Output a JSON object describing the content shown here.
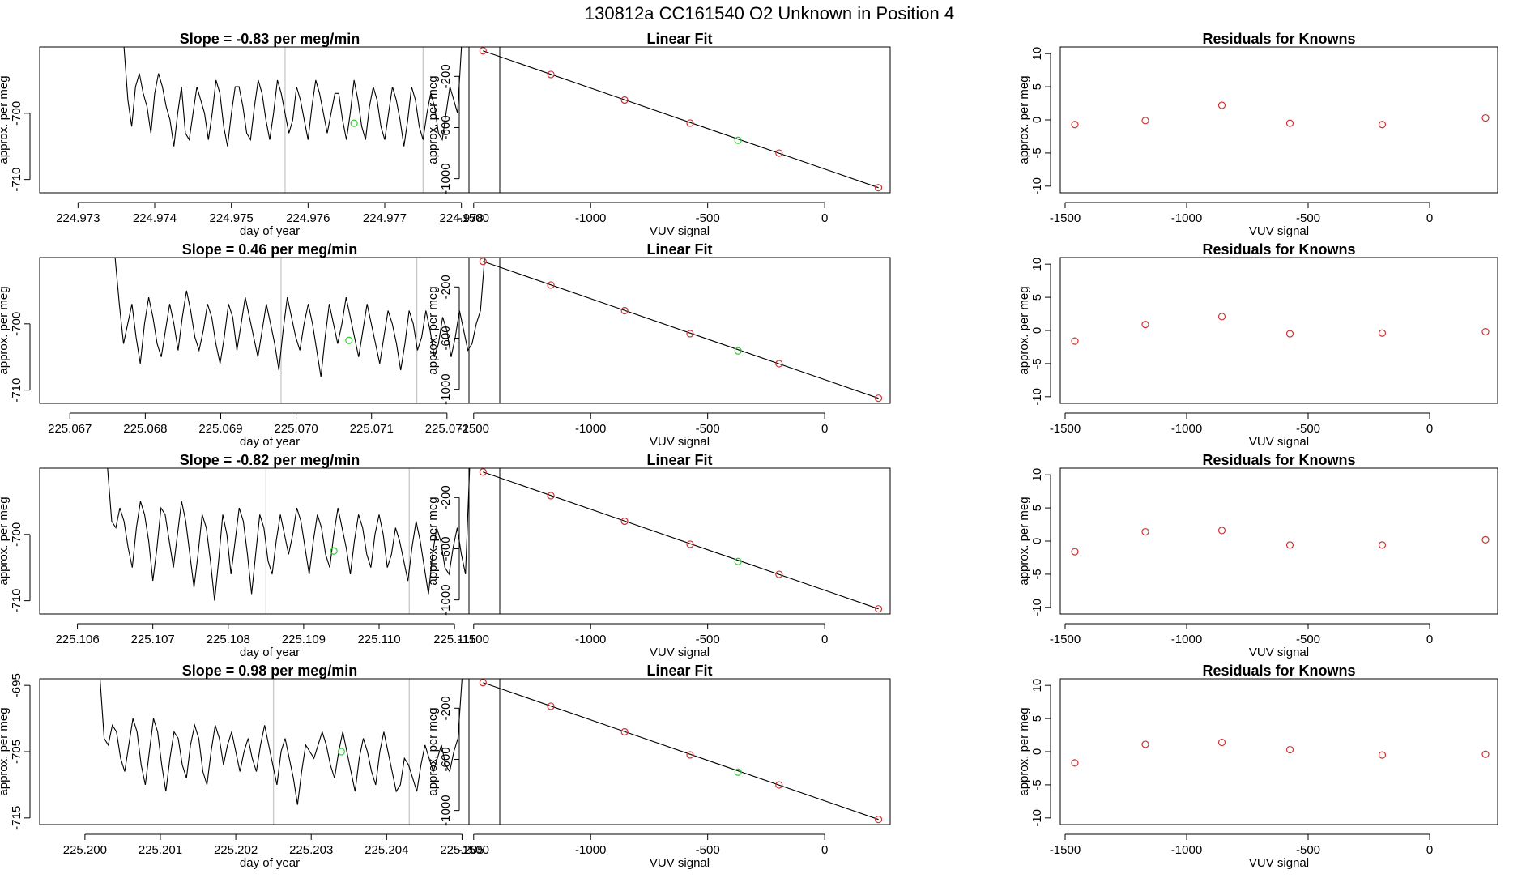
{
  "figure_title": "130812a      CC161540    O2 Unknown in Position  4",
  "chart_data": [
    {
      "panel": "time-series",
      "row": 1,
      "type": "line",
      "title": "Slope =  -0.83  per meg/min",
      "xlabel": "day of year",
      "ylabel": "approx. per meg",
      "xlim": [
        224.9725,
        224.9785
      ],
      "ylim": [
        -712,
        -690
      ],
      "xticks": [
        224.973,
        224.974,
        224.975,
        224.976,
        224.977,
        224.978
      ],
      "xtick_labels": [
        "224.973",
        "224.974",
        "224.975",
        "224.976",
        "224.977",
        "224.978"
      ],
      "yticks": [
        -700,
        -710
      ],
      "ytick_labels": [
        "-700",
        "-710"
      ],
      "vlines": [
        224.9757,
        224.9775
      ],
      "green_point": [
        224.9766,
        -701.5
      ],
      "series": [
        {
          "x_start": 224.9736,
          "x_end": 224.978,
          "values": [
            -690,
            -698,
            -702,
            -696,
            -694,
            -697,
            -699,
            -703,
            -697,
            -694,
            -696,
            -699,
            -701,
            -705,
            -700,
            -696,
            -703,
            -704,
            -700,
            -696,
            -698,
            -700,
            -704,
            -700,
            -695,
            -697,
            -702,
            -705,
            -700,
            -696,
            -696,
            -699,
            -703,
            -704,
            -699,
            -695,
            -697,
            -701,
            -704,
            -700,
            -695,
            -697,
            -700,
            -703,
            -701,
            -696,
            -698,
            -701,
            -704,
            -699,
            -695,
            -697,
            -700,
            -703,
            -700,
            -697,
            -697,
            -701,
            -704,
            -700,
            -695,
            -698,
            -702,
            -704,
            -699,
            -696,
            -698,
            -702,
            -704,
            -700,
            -696,
            -698,
            -701,
            -705,
            -701,
            -696,
            -698,
            -702,
            -704,
            -700,
            -697,
            -699,
            -703,
            -704,
            -700,
            -696,
            -698,
            -700,
            -690
          ]
        }
      ]
    },
    {
      "panel": "linear-fit",
      "row": 1,
      "type": "scatter",
      "title": "Linear Fit",
      "xlabel": "VUV signal",
      "ylabel": "approx. per meg",
      "xlim": [
        -1520,
        280
      ],
      "ylim": [
        -1110,
        30
      ],
      "xticks": [
        -1500,
        -1000,
        -500,
        0
      ],
      "xtick_labels": [
        "-1500",
        "-1000",
        "-500",
        "0"
      ],
      "yticks": [
        -200,
        -600,
        -1000
      ],
      "ytick_labels": [
        "-200",
        "-600",
        "-1000"
      ],
      "fit_line": {
        "x": [
          -1460,
          230
        ],
        "y": [
          0,
          -1070
        ]
      },
      "points": {
        "x": [
          -1460,
          -1170,
          -855,
          -575,
          -195,
          230
        ],
        "y": [
          0,
          -185,
          -385,
          -565,
          -800,
          -1070
        ]
      },
      "green_point": [
        -370,
        -700
      ]
    },
    {
      "panel": "residuals",
      "row": 1,
      "type": "scatter",
      "title": "Residuals for Knowns",
      "xlabel": "VUV signal",
      "ylabel": "approx. per meg",
      "xlim": [
        -1520,
        280
      ],
      "ylim": [
        -11,
        11
      ],
      "xticks": [
        -1500,
        -1000,
        -500,
        0
      ],
      "xtick_labels": [
        "-1500",
        "-1000",
        "-500",
        "0"
      ],
      "yticks": [
        10,
        5,
        0,
        -5,
        -10
      ],
      "ytick_labels": [
        "10",
        "5",
        "0",
        "-5",
        "-10"
      ],
      "points": {
        "x": [
          -1460,
          -1170,
          -855,
          -575,
          -195,
          230
        ],
        "y": [
          -0.7,
          -0.1,
          2.2,
          -0.5,
          -0.7,
          0.3
        ]
      }
    },
    {
      "panel": "time-series",
      "row": 2,
      "type": "line",
      "title": "Slope =  0.46  per meg/min",
      "xlabel": "day of year",
      "ylabel": "approx. per meg",
      "xlim": [
        225.0666,
        225.0727
      ],
      "ylim": [
        -712,
        -690
      ],
      "xticks": [
        225.067,
        225.068,
        225.069,
        225.07,
        225.071,
        225.072
      ],
      "xtick_labels": [
        "225.067",
        "225.068",
        "225.069",
        "225.070",
        "225.071",
        "225.072"
      ],
      "yticks": [
        -700,
        -710
      ],
      "ytick_labels": [
        "-700",
        "-710"
      ],
      "vlines": [
        225.0698,
        225.0716
      ],
      "green_point": [
        225.0707,
        -702.5
      ],
      "series": [
        {
          "x_start": 225.0676,
          "x_end": 225.0725,
          "values": [
            -690,
            -697,
            -703,
            -700,
            -697,
            -702,
            -706,
            -700,
            -696,
            -699,
            -703,
            -705,
            -701,
            -697,
            -700,
            -704,
            -699,
            -695,
            -698,
            -702,
            -704,
            -701,
            -697,
            -699,
            -703,
            -706,
            -702,
            -697,
            -699,
            -704,
            -700,
            -696,
            -699,
            -702,
            -705,
            -701,
            -697,
            -700,
            -703,
            -707,
            -701,
            -696,
            -699,
            -702,
            -704,
            -700,
            -697,
            -700,
            -704,
            -708,
            -702,
            -697,
            -700,
            -703,
            -700,
            -696,
            -699,
            -702,
            -705,
            -701,
            -697,
            -700,
            -703,
            -706,
            -702,
            -698,
            -700,
            -703,
            -707,
            -703,
            -698,
            -700,
            -704,
            -702,
            -698,
            -701,
            -705,
            -703,
            -699,
            -701,
            -705,
            -702,
            -698,
            -701,
            -704,
            -703,
            -700,
            -698,
            -690
          ]
        }
      ]
    },
    {
      "panel": "linear-fit",
      "row": 2,
      "type": "scatter",
      "title": "Linear Fit",
      "xlabel": "VUV signal",
      "ylabel": "approx. per meg",
      "xlim": [
        -1520,
        280
      ],
      "ylim": [
        -1110,
        30
      ],
      "xticks": [
        -1500,
        -1000,
        -500,
        0
      ],
      "xtick_labels": [
        "-1500",
        "-1000",
        "-500",
        "0"
      ],
      "yticks": [
        -200,
        -600,
        -1000
      ],
      "ytick_labels": [
        "-200",
        "-600",
        "-1000"
      ],
      "fit_line": {
        "x": [
          -1460,
          230
        ],
        "y": [
          0,
          -1070
        ]
      },
      "points": {
        "x": [
          -1460,
          -1170,
          -855,
          -575,
          -195,
          230
        ],
        "y": [
          0,
          -185,
          -385,
          -565,
          -800,
          -1070
        ]
      },
      "green_point": [
        -370,
        -700
      ]
    },
    {
      "panel": "residuals",
      "row": 2,
      "type": "scatter",
      "title": "Residuals for Knowns",
      "xlabel": "VUV signal",
      "ylabel": "approx. per meg",
      "xlim": [
        -1520,
        280
      ],
      "ylim": [
        -11,
        11
      ],
      "xticks": [
        -1500,
        -1000,
        -500,
        0
      ],
      "xtick_labels": [
        "-1500",
        "-1000",
        "-500",
        "0"
      ],
      "yticks": [
        10,
        5,
        0,
        -5,
        -10
      ],
      "ytick_labels": [
        "10",
        "5",
        "0",
        "-5",
        "-10"
      ],
      "points": {
        "x": [
          -1460,
          -1170,
          -855,
          -575,
          -195,
          230
        ],
        "y": [
          -1.6,
          0.9,
          2.1,
          -0.5,
          -0.4,
          -0.2
        ]
      }
    },
    {
      "panel": "time-series",
      "row": 3,
      "type": "line",
      "title": "Slope =  -0.82  per meg/min",
      "xlabel": "day of year",
      "ylabel": "approx. per meg",
      "xlim": [
        225.1055,
        225.1116
      ],
      "ylim": [
        -712,
        -690
      ],
      "xticks": [
        225.106,
        225.107,
        225.108,
        225.109,
        225.11,
        225.111
      ],
      "xtick_labels": [
        "225.106",
        "225.107",
        "225.108",
        "225.109",
        "225.110",
        "225.111"
      ],
      "yticks": [
        -700,
        -710
      ],
      "ytick_labels": [
        "-700",
        "-710"
      ],
      "vlines": [
        225.1085,
        225.1104
      ],
      "green_point": [
        225.1094,
        -702.5
      ],
      "series": [
        {
          "x_start": 225.1064,
          "x_end": 225.1112,
          "values": [
            -690,
            -698,
            -699,
            -696,
            -698,
            -702,
            -705,
            -699,
            -695,
            -697,
            -701,
            -707,
            -702,
            -696,
            -697,
            -701,
            -705,
            -700,
            -695,
            -698,
            -703,
            -708,
            -703,
            -697,
            -699,
            -704,
            -710,
            -704,
            -697,
            -700,
            -706,
            -701,
            -696,
            -698,
            -703,
            -709,
            -703,
            -697,
            -699,
            -704,
            -706,
            -701,
            -697,
            -700,
            -703,
            -700,
            -696,
            -698,
            -702,
            -706,
            -701,
            -697,
            -699,
            -703,
            -705,
            -700,
            -696,
            -699,
            -702,
            -706,
            -701,
            -697,
            -699,
            -703,
            -705,
            -700,
            -697,
            -700,
            -705,
            -703,
            -699,
            -701,
            -704,
            -707,
            -702,
            -698,
            -701,
            -705,
            -709,
            -703,
            -699,
            -701,
            -705,
            -706,
            -702,
            -699,
            -703,
            -706,
            -690
          ]
        }
      ]
    },
    {
      "panel": "linear-fit",
      "row": 3,
      "type": "scatter",
      "title": "Linear Fit",
      "xlabel": "VUV signal",
      "ylabel": "approx. per meg",
      "xlim": [
        -1520,
        280
      ],
      "ylim": [
        -1110,
        30
      ],
      "xticks": [
        -1500,
        -1000,
        -500,
        0
      ],
      "xtick_labels": [
        "-1500",
        "-1000",
        "-500",
        "0"
      ],
      "yticks": [
        -200,
        -600,
        -1000
      ],
      "ytick_labels": [
        "-200",
        "-600",
        "-1000"
      ],
      "fit_line": {
        "x": [
          -1460,
          230
        ],
        "y": [
          0,
          -1070
        ]
      },
      "points": {
        "x": [
          -1460,
          -1170,
          -855,
          -575,
          -195,
          230
        ],
        "y": [
          0,
          -185,
          -385,
          -565,
          -800,
          -1070
        ]
      },
      "green_point": [
        -370,
        -700
      ]
    },
    {
      "panel": "residuals",
      "row": 3,
      "type": "scatter",
      "title": "Residuals for Knowns",
      "xlabel": "VUV signal",
      "ylabel": "approx. per meg",
      "xlim": [
        -1520,
        280
      ],
      "ylim": [
        -11,
        11
      ],
      "xticks": [
        -1500,
        -1000,
        -500,
        0
      ],
      "xtick_labels": [
        "-1500",
        "-1000",
        "-500",
        "0"
      ],
      "yticks": [
        10,
        5,
        0,
        -5,
        -10
      ],
      "ytick_labels": [
        "10",
        "5",
        "0",
        "-5",
        "-10"
      ],
      "points": {
        "x": [
          -1460,
          -1170,
          -855,
          -575,
          -195,
          230
        ],
        "y": [
          -1.6,
          1.4,
          1.6,
          -0.6,
          -0.6,
          0.2
        ]
      }
    },
    {
      "panel": "time-series",
      "row": 4,
      "type": "line",
      "title": "Slope =  0.98  per meg/min",
      "xlabel": "day of year",
      "ylabel": "approx. per meg",
      "xlim": [
        225.1994,
        225.2055
      ],
      "ylim": [
        -716,
        -694
      ],
      "xticks": [
        225.2,
        225.201,
        225.202,
        225.203,
        225.204,
        225.205
      ],
      "xtick_labels": [
        "225.200",
        "225.201",
        "225.202",
        "225.203",
        "225.204",
        "225.205"
      ],
      "yticks": [
        -695,
        -705,
        -715
      ],
      "ytick_labels": [
        "-695",
        "-705",
        "-715"
      ],
      "vlines": [
        225.2025,
        225.2043
      ],
      "green_point": [
        225.2034,
        -705
      ],
      "series": [
        {
          "x_start": 225.2002,
          "x_end": 225.205,
          "values": [
            -694,
            -703,
            -704,
            -701,
            -702,
            -706,
            -708,
            -704,
            -700,
            -702,
            -707,
            -710,
            -705,
            -700,
            -702,
            -707,
            -711,
            -706,
            -702,
            -703,
            -707,
            -709,
            -704,
            -701,
            -703,
            -708,
            -710,
            -705,
            -701,
            -703,
            -707,
            -704,
            -702,
            -705,
            -708,
            -705,
            -703,
            -706,
            -708,
            -704,
            -701,
            -704,
            -707,
            -710,
            -705,
            -703,
            -706,
            -709,
            -713,
            -708,
            -704,
            -705,
            -706,
            -704,
            -702,
            -704,
            -707,
            -709,
            -705,
            -702,
            -705,
            -708,
            -711,
            -706,
            -703,
            -705,
            -708,
            -710,
            -705,
            -702,
            -705,
            -708,
            -711,
            -710,
            -706,
            -707,
            -709,
            -711,
            -707,
            -704,
            -706,
            -708,
            -706,
            -704,
            -707,
            -708,
            -705,
            -703,
            -694
          ]
        }
      ]
    },
    {
      "panel": "linear-fit",
      "row": 4,
      "type": "scatter",
      "title": "Linear Fit",
      "xlabel": "VUV signal",
      "ylabel": "approx. per meg",
      "xlim": [
        -1520,
        280
      ],
      "ylim": [
        -1110,
        30
      ],
      "xticks": [
        -1500,
        -1000,
        -500,
        0
      ],
      "xtick_labels": [
        "-1500",
        "-1000",
        "-500",
        "0"
      ],
      "yticks": [
        -200,
        -600,
        -1000
      ],
      "ytick_labels": [
        "-200",
        "-600",
        "-1000"
      ],
      "fit_line": {
        "x": [
          -1460,
          230
        ],
        "y": [
          0,
          -1070
        ]
      },
      "points": {
        "x": [
          -1460,
          -1170,
          -855,
          -575,
          -195,
          230
        ],
        "y": [
          0,
          -185,
          -385,
          -565,
          -800,
          -1070
        ]
      },
      "green_point": [
        -370,
        -700
      ]
    },
    {
      "panel": "residuals",
      "row": 4,
      "type": "scatter",
      "title": "Residuals for Knowns",
      "xlabel": "VUV signal",
      "ylabel": "approx. per meg",
      "xlim": [
        -1520,
        280
      ],
      "ylim": [
        -11,
        11
      ],
      "xticks": [
        -1500,
        -1000,
        -500,
        0
      ],
      "xtick_labels": [
        "-1500",
        "-1000",
        "-500",
        "0"
      ],
      "yticks": [
        10,
        5,
        0,
        -5,
        -10
      ],
      "ytick_labels": [
        "10",
        "5",
        "0",
        "-5",
        "-10"
      ],
      "points": {
        "x": [
          -1460,
          -1170,
          -855,
          -575,
          -195,
          230
        ],
        "y": [
          -1.7,
          1.1,
          1.4,
          0.3,
          -0.5,
          -0.4
        ]
      }
    }
  ],
  "colors": {
    "line": "#000000",
    "vline": "#c8c8c8",
    "known_point": "#cc3333",
    "unknown_point": "#33cc33",
    "frame": "#000000"
  }
}
